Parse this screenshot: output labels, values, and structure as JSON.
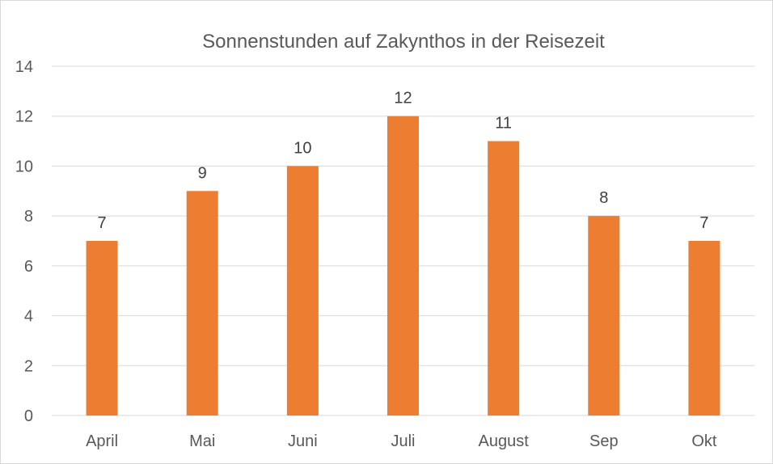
{
  "chart_data": {
    "type": "bar",
    "title": "Sonnenstunden  auf Zakynthos in der Reisezeit",
    "xlabel": "",
    "ylabel": "",
    "categories": [
      "April",
      "Mai",
      "Juni",
      "Juli",
      "August",
      "Sep",
      "Okt"
    ],
    "values": [
      7,
      9,
      10,
      12,
      11,
      8,
      7
    ],
    "ylim": [
      0,
      14
    ],
    "yticks": [
      0,
      2,
      4,
      6,
      8,
      10,
      12,
      14
    ],
    "grid": true,
    "data_labels": true,
    "bar_color": "#ED7D31",
    "legend": "none"
  }
}
